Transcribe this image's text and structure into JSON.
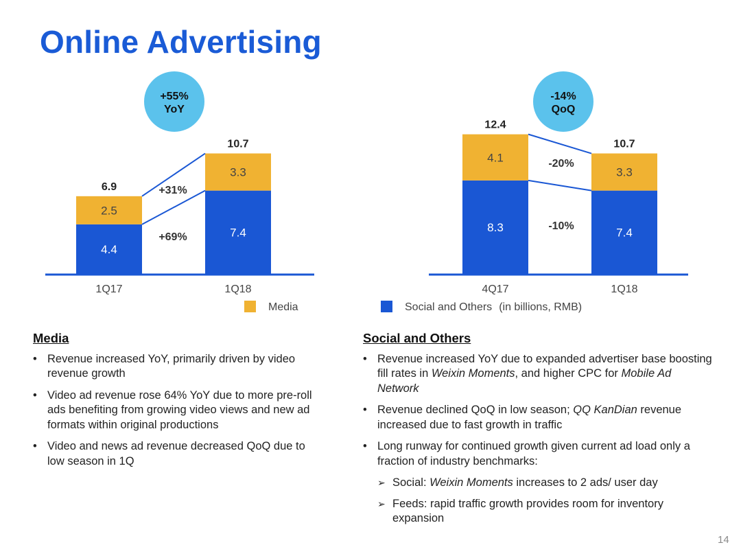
{
  "title": "Online Advertising",
  "page_number": "14",
  "colors": {
    "media": "#f0b232",
    "social": "#1a57d4",
    "title": "#1a5bd6",
    "badge": "#5bc2ec",
    "axis": "#1a57d4"
  },
  "legend": {
    "media": "Media",
    "social": "Social and Others",
    "note": "(in billions, RMB)"
  },
  "chart_data": [
    {
      "type": "bar",
      "stacked": true,
      "title": "",
      "categories": [
        "1Q17",
        "1Q18"
      ],
      "series": [
        {
          "name": "Social and Others",
          "values": [
            4.4,
            7.4
          ]
        },
        {
          "name": "Media",
          "values": [
            2.5,
            3.3
          ]
        }
      ],
      "totals": [
        6.9,
        10.7
      ],
      "total_labels": [
        "6.9",
        "10.7"
      ],
      "series_labels": [
        [
          "4.4",
          "7.4"
        ],
        [
          "2.5",
          "3.3"
        ]
      ],
      "growth_labels": {
        "media": "+31%",
        "social": "+69%"
      },
      "badge": {
        "line1": "+55%",
        "line2": "YoY"
      },
      "ylim": [
        0,
        11.5
      ],
      "unit": "billions, RMB"
    },
    {
      "type": "bar",
      "stacked": true,
      "title": "",
      "categories": [
        "4Q17",
        "1Q18"
      ],
      "series": [
        {
          "name": "Social and Others",
          "values": [
            8.3,
            7.4
          ]
        },
        {
          "name": "Media",
          "values": [
            4.1,
            3.3
          ]
        }
      ],
      "totals": [
        12.4,
        10.7
      ],
      "total_labels": [
        "12.4",
        "10.7"
      ],
      "series_labels": [
        [
          "8.3",
          "7.4"
        ],
        [
          "4.1",
          "3.3"
        ]
      ],
      "growth_labels": {
        "media": "-20%",
        "social": "-10%"
      },
      "badge": {
        "line1": "-14%",
        "line2": "QoQ"
      },
      "ylim": [
        0,
        12.4
      ],
      "unit": "billions, RMB"
    }
  ],
  "media_section": {
    "heading": "Media",
    "bullets": [
      "Revenue increased YoY, primarily driven by video revenue growth",
      "Video ad revenue rose 64% YoY due to more pre-roll ads benefiting from growing video views and new ad formats within original productions",
      "Video and news ad revenue decreased QoQ due to low season in 1Q"
    ]
  },
  "social_section": {
    "heading": "Social and Others",
    "bullet1": {
      "pre": "Revenue increased YoY due to expanded advertiser base boosting fill rates in ",
      "em1": "Weixin Moments",
      "mid": ", and higher CPC for ",
      "em2": "Mobile Ad Network"
    },
    "bullet2": {
      "pre": "Revenue declined QoQ in low season; ",
      "em": "QQ KanDian",
      "post": " revenue increased due to fast growth in traffic"
    },
    "bullet3": "Long runway for continued growth given current ad load only a fraction of industry benchmarks:",
    "sub1": {
      "pre": "Social: ",
      "em": "Weixin Moments",
      "post": " increases to 2 ads/ user day"
    },
    "sub2": "Feeds: rapid traffic growth provides room for inventory expansion",
    "arrow": "➢"
  }
}
